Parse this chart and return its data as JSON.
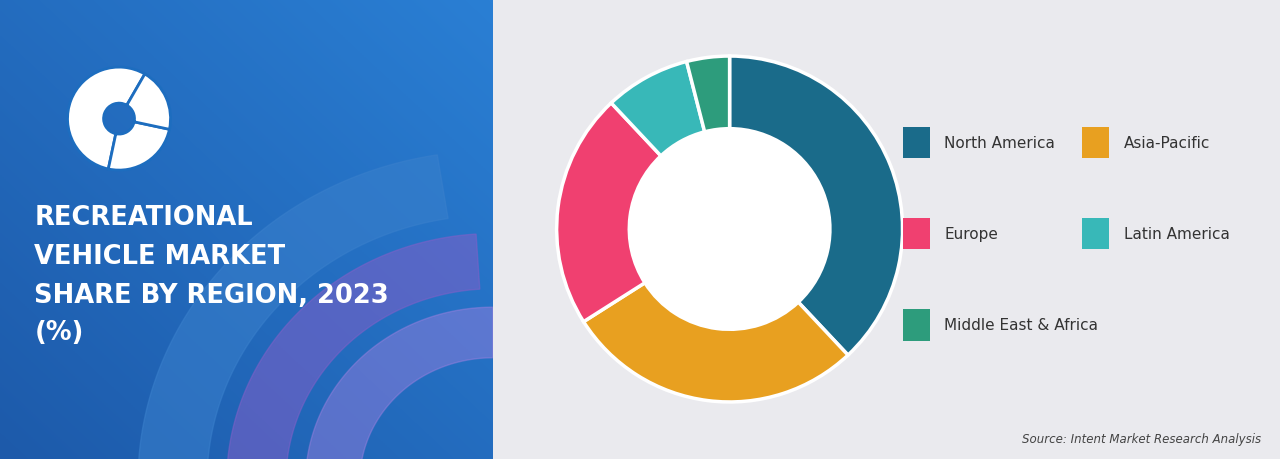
{
  "title_lines": [
    "RECREATIONAL",
    "VEHICLE MARKET",
    "SHARE BY REGION, 2023",
    "(%)"
  ],
  "segments": [
    "North America",
    "Asia-Pacific",
    "Europe",
    "Latin America",
    "Middle East & Africa"
  ],
  "values": [
    38,
    28,
    22,
    8,
    4
  ],
  "colors": [
    "#1a6b8a",
    "#e8a020",
    "#f04070",
    "#38b8b8",
    "#2d9c7c"
  ],
  "source_text": "Source: Intent Market Research Analysis",
  "bg_left_top": "#1e6fbf",
  "bg_left_bottom": "#1a5aaa",
  "bg_right_color": "#eaeaee",
  "title_color": "#ffffff",
  "legend_text_color": "#333333",
  "startangle": 90
}
